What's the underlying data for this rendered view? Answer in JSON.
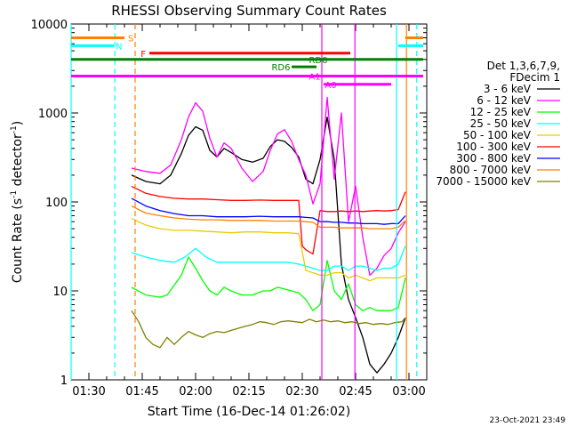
{
  "chart_data": {
    "type": "line",
    "title": "RHESSI Observing Summary Count Rates",
    "xlabel": "Start Time (16-Dec-14 01:26:02)",
    "ylabel_main": "Count Rate (s",
    "ylabel_sup1": "-1",
    "ylabel_mid": " detector",
    "ylabel_sup2": "-1",
    "ylabel_end": ")",
    "ylog": true,
    "ylim": [
      1,
      10000
    ],
    "xlim_minutes": [
      85,
      185
    ],
    "x_ticks": [
      {
        "label": "01:30",
        "min": 90
      },
      {
        "label": "01:45",
        "min": 105
      },
      {
        "label": "02:00",
        "min": 120
      },
      {
        "label": "02:15",
        "min": 135
      },
      {
        "label": "02:30",
        "min": 150
      },
      {
        "label": "02:45",
        "min": 165
      },
      {
        "label": "03:00",
        "min": 180
      }
    ],
    "y_ticks": [
      {
        "label": "1",
        "v": 1
      },
      {
        "label": "10",
        "v": 10
      },
      {
        "label": "100",
        "v": 100
      },
      {
        "label": "1000",
        "v": 1000
      },
      {
        "label": "10000",
        "v": 10000
      }
    ],
    "legend_header": [
      "Det 1,3,6,7,9,",
      "FDecim 1"
    ],
    "series": [
      {
        "name": "3 - 6 keV",
        "color": "#000000",
        "x": [
          102,
          106,
          110,
          113,
          116,
          118,
          120,
          122,
          124,
          126,
          128,
          130,
          133,
          136,
          139,
          141,
          143,
          145,
          147,
          149,
          151,
          153,
          155,
          157,
          159,
          161,
          163,
          165,
          167,
          169,
          171,
          173,
          175,
          177,
          179
        ],
        "y": [
          200,
          170,
          160,
          200,
          350,
          560,
          700,
          640,
          380,
          320,
          400,
          360,
          300,
          280,
          310,
          420,
          500,
          480,
          410,
          320,
          180,
          160,
          300,
          900,
          300,
          20,
          8,
          5,
          3,
          1.5,
          1.2,
          1.5,
          2,
          3,
          5
        ]
      },
      {
        "name": "6 - 12 keV",
        "color": "#ff00ff",
        "x": [
          102,
          106,
          110,
          113,
          116,
          118,
          120,
          122,
          124,
          126,
          128,
          130,
          133,
          136,
          139,
          141,
          143,
          145,
          147,
          149,
          151,
          153,
          155,
          157,
          159,
          161,
          163,
          165,
          167,
          169,
          171,
          173,
          175,
          177,
          179
        ],
        "y": [
          240,
          220,
          210,
          260,
          500,
          900,
          1300,
          1050,
          520,
          320,
          460,
          400,
          240,
          170,
          220,
          380,
          580,
          650,
          480,
          300,
          200,
          95,
          160,
          1500,
          180,
          1000,
          60,
          150,
          40,
          15,
          18,
          25,
          30,
          45,
          60
        ]
      },
      {
        "name": "12 - 25 keV",
        "color": "#00ff00",
        "x": [
          102,
          106,
          110,
          112,
          116,
          118,
          120,
          122,
          124,
          126,
          128,
          130,
          133,
          136,
          139,
          141,
          143,
          145,
          147,
          149,
          151,
          153,
          155,
          157,
          159,
          161,
          163,
          165,
          167,
          169,
          171,
          173,
          175,
          177,
          179
        ],
        "y": [
          11,
          9,
          8.5,
          9,
          15,
          24,
          18,
          13,
          10,
          9,
          11,
          10,
          9,
          9,
          10,
          10,
          11,
          10.5,
          10,
          9.5,
          8,
          6,
          7,
          22,
          10,
          8,
          12,
          7,
          6,
          6.5,
          6,
          6,
          6,
          6.5,
          14
        ]
      },
      {
        "name": "25 - 50 keV",
        "color": "#00ffff",
        "x": [
          102,
          106,
          110,
          114,
          117,
          120,
          123,
          126,
          130,
          134,
          138,
          142,
          146,
          149,
          151,
          153,
          155,
          157,
          159,
          161,
          163,
          165,
          167,
          169,
          171,
          173,
          175,
          177,
          179
        ],
        "y": [
          27,
          24,
          22,
          21,
          24,
          30,
          24,
          21,
          21,
          21,
          21,
          21,
          21,
          20,
          19,
          18,
          17,
          17,
          19,
          19,
          17,
          19,
          19,
          18,
          17,
          18,
          18,
          20,
          32
        ]
      },
      {
        "name": "50 - 100 keV",
        "color": "#e8cc00",
        "x": [
          102,
          106,
          110,
          114,
          118,
          122,
          126,
          130,
          134,
          138,
          142,
          146,
          149,
          151,
          153,
          155,
          157,
          159,
          161,
          163,
          165,
          167,
          169,
          171,
          173,
          175,
          177,
          179
        ],
        "y": [
          65,
          55,
          50,
          48,
          48,
          47,
          46,
          45,
          46,
          46,
          45,
          45,
          44,
          17,
          16,
          15,
          15,
          16,
          16,
          14,
          15,
          14,
          13,
          14,
          14,
          14,
          14,
          15
        ]
      },
      {
        "name": "100 - 300 keV",
        "color": "#ff0000",
        "x": [
          102,
          106,
          110,
          114,
          118,
          122,
          126,
          130,
          134,
          138,
          142,
          146,
          149,
          150,
          151,
          153,
          155,
          157,
          159,
          161,
          163,
          165,
          167,
          169,
          171,
          173,
          175,
          177,
          179
        ],
        "y": [
          150,
          125,
          115,
          110,
          108,
          108,
          106,
          104,
          104,
          105,
          104,
          104,
          104,
          32,
          29,
          26,
          80,
          78,
          78,
          79,
          78,
          79,
          78,
          79,
          80,
          79,
          80,
          82,
          130
        ]
      },
      {
        "name": "300 - 800 keV",
        "color": "#0000ff",
        "x": [
          102,
          106,
          110,
          114,
          118,
          122,
          126,
          130,
          134,
          138,
          142,
          146,
          149,
          151,
          153,
          155,
          157,
          159,
          161,
          163,
          165,
          167,
          169,
          171,
          173,
          175,
          177,
          179
        ],
        "y": [
          110,
          90,
          80,
          74,
          70,
          70,
          68,
          68,
          68,
          69,
          68,
          68,
          68,
          67,
          66,
          60,
          60,
          59,
          59,
          58,
          58,
          57,
          57,
          57,
          56,
          57,
          57,
          70
        ]
      },
      {
        "name": "800 - 7000 keV",
        "color": "#ff8000",
        "x": [
          102,
          106,
          110,
          114,
          118,
          122,
          126,
          130,
          134,
          138,
          142,
          146,
          149,
          151,
          153,
          155,
          157,
          159,
          161,
          163,
          165,
          167,
          169,
          171,
          173,
          175,
          177,
          179
        ],
        "y": [
          90,
          75,
          70,
          66,
          64,
          63,
          63,
          62,
          62,
          62,
          61,
          61,
          61,
          60,
          59,
          52,
          52,
          52,
          51,
          51,
          51,
          51,
          50,
          50,
          50,
          50,
          52,
          62
        ]
      },
      {
        "name": "7000 - 15000 keV",
        "color": "#808000",
        "x": [
          102,
          104,
          106,
          108,
          110,
          112,
          114,
          116,
          118,
          120,
          122,
          124,
          126,
          128,
          130,
          132,
          134,
          136,
          138,
          140,
          142,
          144,
          146,
          148,
          150,
          152,
          154,
          156,
          158,
          160,
          162,
          164,
          166,
          168,
          170,
          172,
          174,
          176,
          178,
          179
        ],
        "y": [
          6,
          4.5,
          3,
          2.5,
          2.3,
          3,
          2.5,
          3,
          3.5,
          3.2,
          3,
          3.3,
          3.5,
          3.4,
          3.6,
          3.8,
          4,
          4.2,
          4.5,
          4.4,
          4.2,
          4.5,
          4.6,
          4.5,
          4.4,
          4.8,
          4.5,
          4.7,
          4.5,
          4.6,
          4.4,
          4.5,
          4.3,
          4.4,
          4.2,
          4.3,
          4.2,
          4.4,
          4.5,
          5
        ]
      }
    ],
    "state_bars": [
      {
        "label": "S",
        "color": "#ff8000",
        "y": 7000,
        "segments": [
          [
            85,
            100
          ],
          [
            179,
            184
          ]
        ],
        "label_x": 101,
        "label_side": "right"
      },
      {
        "label": "N",
        "color": "#00ffff",
        "y": 5700,
        "segments": [
          [
            85,
            97
          ],
          [
            177,
            184
          ]
        ],
        "label_x": 97.5,
        "label_side": "right"
      },
      {
        "label": "F",
        "color": "#ff0000",
        "y": 4700,
        "segments": [
          [
            107,
            163.5
          ]
        ],
        "label_x": 106,
        "label_side": "left"
      },
      {
        "label": "RD0",
        "color": "#008000",
        "y": 4000,
        "segments": [
          [
            85,
            184
          ]
        ],
        "label_x": 154.5,
        "label_side": "center"
      },
      {
        "label": "RD6",
        "color": "#008000",
        "y": 3300,
        "segments": [
          [
            147,
            154
          ]
        ],
        "label_x": 144,
        "label_side": "center"
      },
      {
        "label": "A0",
        "color": "#ff00ff",
        "y": 2100,
        "segments": [
          [
            156,
            175
          ]
        ],
        "label_x": 158,
        "label_side": "center"
      },
      {
        "label": "A1",
        "color": "#ff00ff",
        "y": 2600,
        "segments": [
          [
            85,
            184
          ]
        ],
        "label_x": 153.5,
        "label_side": "center"
      }
    ],
    "vlines": [
      {
        "x": 97.3,
        "color": "#00ffff",
        "style": "dash"
      },
      {
        "x": 103.0,
        "color": "#ff8000",
        "style": "dash"
      },
      {
        "x": 85.0,
        "color": "#00ffff",
        "style": "solid"
      },
      {
        "x": 176.5,
        "color": "#00ffff",
        "style": "solid"
      },
      {
        "x": 179.3,
        "color": "#ff8000",
        "style": "solid"
      },
      {
        "x": 182.2,
        "color": "#00ffff",
        "style": "dash"
      },
      {
        "x": 155.5,
        "color": "#ff00ff",
        "style": "solid"
      },
      {
        "x": 164.8,
        "color": "#ff00ff",
        "style": "solid"
      }
    ]
  },
  "footer_timestamp": "23-Oct-2021 23:49"
}
